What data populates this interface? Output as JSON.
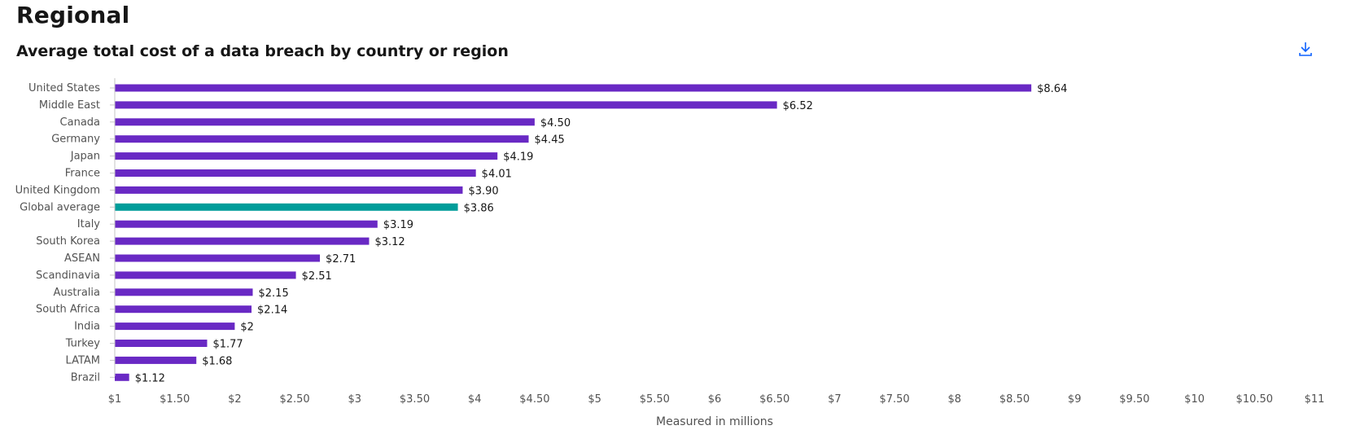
{
  "section_title": "Regional",
  "chart_data": {
    "type": "bar",
    "orientation": "horizontal",
    "title": "Average total cost of a data breach by country or region",
    "xlabel": "Measured in millions",
    "ylabel": "",
    "xlim": [
      1,
      11
    ],
    "x_ticks": [
      "$1",
      "$1.50",
      "$2",
      "$2.50",
      "$3",
      "$3.50",
      "$4",
      "$4.50",
      "$5",
      "$5.50",
      "$6",
      "$6.50",
      "$7",
      "$7.50",
      "$8",
      "$8.50",
      "$9",
      "$9.50",
      "$10",
      "$10.50",
      "$11"
    ],
    "x_tick_values": [
      1,
      1.5,
      2,
      2.5,
      3,
      3.5,
      4,
      4.5,
      5,
      5.5,
      6,
      6.5,
      7,
      7.5,
      8,
      8.5,
      9,
      9.5,
      10,
      10.5,
      11
    ],
    "grid": false,
    "categories": [
      "United States",
      "Middle East",
      "Canada",
      "Germany",
      "Japan",
      "France",
      "United Kingdom",
      "Global average",
      "Italy",
      "South Korea",
      "ASEAN",
      "Scandinavia",
      "Australia",
      "South Africa",
      "India",
      "Turkey",
      "LATAM",
      "Brazil"
    ],
    "values": [
      8.64,
      6.52,
      4.5,
      4.45,
      4.19,
      4.01,
      3.9,
      3.86,
      3.19,
      3.12,
      2.71,
      2.51,
      2.15,
      2.14,
      2,
      1.77,
      1.68,
      1.12
    ],
    "value_labels": [
      "$8.64",
      "$6.52",
      "$4.50",
      "$4.45",
      "$4.19",
      "$4.01",
      "$3.90",
      "$3.86",
      "$3.19",
      "$3.12",
      "$2.71",
      "$2.51",
      "$2.15",
      "$2.14",
      "$2",
      "$1.77",
      "$1.68",
      "$1.12"
    ],
    "highlight_category": "Global average",
    "colors": {
      "bar": "#6929c4",
      "highlight": "#009d9a",
      "axis": "#c6c6c6"
    }
  },
  "icons": {
    "download": "download-icon"
  }
}
